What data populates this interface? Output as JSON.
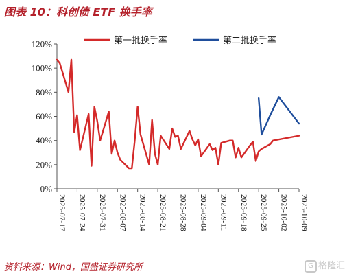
{
  "figure": {
    "title": "图表 10：科创债 ETF 换手率",
    "source": "资料来源：Wind，国盛证券研究所",
    "watermark": "格隆汇"
  },
  "colors": {
    "accent": "#b4202a",
    "series1": "#d42a2a",
    "series2": "#1f4e9c"
  },
  "chart_data": {
    "type": "line",
    "ylim": [
      0,
      120
    ],
    "y_ticks": [
      0,
      20,
      40,
      60,
      80,
      100,
      120
    ],
    "y_tick_labels": [
      "0%",
      "20%",
      "40%",
      "60%",
      "80%",
      "100%",
      "120%"
    ],
    "x_ticks": [
      "2025-07-17",
      "2025-07-24",
      "2025-07-31",
      "2025-08-07",
      "2025-08-14",
      "2025-08-21",
      "2025-08-28",
      "2025-09-04",
      "2025-09-11",
      "2025-09-18",
      "2025-09-25",
      "2025-10-02",
      "2025-10-09"
    ],
    "xlabel": "",
    "ylabel": "",
    "grid": false,
    "legend_position": "top",
    "series": [
      {
        "name": "第一批换手率",
        "color": "#d42a2a",
        "points": [
          [
            "2025-07-17",
            107
          ],
          [
            "2025-07-18",
            104
          ],
          [
            "2025-07-21",
            80
          ],
          [
            "2025-07-22",
            107
          ],
          [
            "2025-07-23",
            47
          ],
          [
            "2025-07-24",
            61
          ],
          [
            "2025-07-25",
            32
          ],
          [
            "2025-07-28",
            62
          ],
          [
            "2025-07-29",
            19
          ],
          [
            "2025-07-30",
            68
          ],
          [
            "2025-07-31",
            56
          ],
          [
            "2025-08-01",
            40
          ],
          [
            "2025-08-04",
            64
          ],
          [
            "2025-08-05",
            29
          ],
          [
            "2025-08-06",
            40
          ],
          [
            "2025-08-07",
            30
          ],
          [
            "2025-08-08",
            24
          ],
          [
            "2025-08-11",
            17
          ],
          [
            "2025-08-12",
            17
          ],
          [
            "2025-08-13",
            40
          ],
          [
            "2025-08-14",
            68
          ],
          [
            "2025-08-15",
            45
          ],
          [
            "2025-08-18",
            20
          ],
          [
            "2025-08-19",
            57
          ],
          [
            "2025-08-20",
            29
          ],
          [
            "2025-08-21",
            20
          ],
          [
            "2025-08-22",
            44
          ],
          [
            "2025-08-25",
            33
          ],
          [
            "2025-08-26",
            50
          ],
          [
            "2025-08-27",
            43
          ],
          [
            "2025-08-28",
            44
          ],
          [
            "2025-08-29",
            33
          ],
          [
            "2025-09-01",
            48
          ],
          [
            "2025-09-02",
            41
          ],
          [
            "2025-09-03",
            36
          ],
          [
            "2025-09-04",
            41
          ],
          [
            "2025-09-05",
            27
          ],
          [
            "2025-09-08",
            37
          ],
          [
            "2025-09-09",
            32
          ],
          [
            "2025-09-10",
            34
          ],
          [
            "2025-09-11",
            20
          ],
          [
            "2025-09-12",
            38
          ],
          [
            "2025-09-15",
            40
          ],
          [
            "2025-09-16",
            40
          ],
          [
            "2025-09-17",
            26
          ],
          [
            "2025-09-18",
            34
          ],
          [
            "2025-09-19",
            26
          ],
          [
            "2025-09-22",
            36
          ],
          [
            "2025-09-23",
            39
          ],
          [
            "2025-09-24",
            23
          ],
          [
            "2025-09-25",
            31
          ],
          [
            "2025-09-26",
            33
          ],
          [
            "2025-09-29",
            37
          ],
          [
            "2025-09-30",
            40
          ],
          [
            "2025-10-09",
            44
          ]
        ]
      },
      {
        "name": "第二批换手率",
        "color": "#1f4e9c",
        "points": [
          [
            "2025-09-25",
            75
          ],
          [
            "2025-09-26",
            45
          ],
          [
            "2025-09-29",
            61
          ],
          [
            "2025-09-30",
            66
          ],
          [
            "2025-10-02",
            76
          ],
          [
            "2025-10-09",
            54
          ]
        ]
      }
    ]
  }
}
